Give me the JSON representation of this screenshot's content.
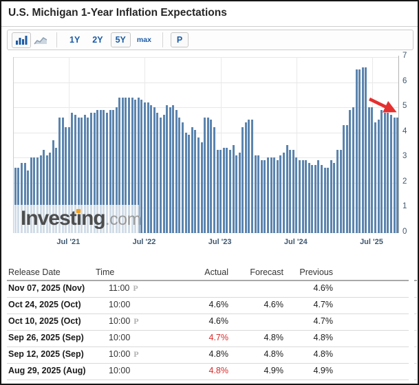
{
  "page": {
    "title": "U.S. Michigan 1-Year Inflation Expectations"
  },
  "toolbar": {
    "chart_type_buttons": [
      {
        "name": "bar-chart",
        "selected": true
      },
      {
        "name": "line-chart",
        "selected": false
      }
    ],
    "range_buttons": [
      {
        "label": "1Y",
        "selected": false
      },
      {
        "label": "2Y",
        "selected": false
      },
      {
        "label": "5Y",
        "selected": true
      },
      {
        "label": "max",
        "selected": false
      }
    ],
    "p_button": {
      "label": "P",
      "selected": true
    }
  },
  "chart_data": {
    "type": "bar",
    "title": "U.S. Michigan 1-Year Inflation Expectations, 5Y view, semi-monthly releases (%)",
    "xlabel": "",
    "ylabel": "",
    "ylim": [
      0,
      7
    ],
    "yticks": [
      0,
      1,
      2,
      3,
      4,
      5,
      6,
      7
    ],
    "grid": true,
    "bar_color": "#5b84ae",
    "x_tick_labels": [
      "Jul '21",
      "Jul '22",
      "Jul '23",
      "Jul '24",
      "Jul '25"
    ],
    "x_tick_indices": [
      17,
      41,
      65,
      89,
      113
    ],
    "values": [
      2.6,
      2.6,
      2.8,
      2.8,
      2.5,
      3.0,
      3.0,
      3.0,
      3.1,
      3.3,
      3.1,
      3.2,
      3.7,
      3.4,
      4.6,
      4.6,
      4.2,
      4.2,
      4.8,
      4.7,
      4.6,
      4.6,
      4.7,
      4.6,
      4.8,
      4.8,
      4.9,
      4.9,
      4.9,
      4.8,
      4.9,
      4.9,
      5.0,
      5.4,
      5.4,
      5.4,
      5.4,
      5.4,
      5.3,
      5.4,
      5.3,
      5.2,
      5.2,
      5.1,
      5.0,
      4.8,
      4.6,
      4.7,
      5.1,
      5.0,
      5.1,
      4.9,
      4.6,
      4.4,
      4.0,
      3.9,
      4.2,
      4.1,
      3.8,
      3.6,
      4.6,
      4.6,
      4.5,
      4.2,
      3.3,
      3.3,
      3.4,
      3.4,
      3.3,
      3.5,
      3.1,
      3.2,
      4.2,
      4.4,
      4.5,
      4.5,
      3.1,
      3.1,
      2.9,
      2.9,
      3.0,
      3.0,
      3.0,
      2.9,
      3.1,
      3.2,
      3.5,
      3.3,
      3.3,
      3.0,
      2.9,
      2.9,
      2.9,
      2.8,
      2.7,
      2.7,
      2.9,
      2.7,
      2.6,
      2.6,
      2.9,
      2.8,
      3.3,
      3.3,
      4.3,
      4.3,
      4.9,
      5.0,
      6.5,
      6.5,
      6.6,
      6.6,
      5.0,
      5.0,
      4.4,
      4.5,
      4.9,
      4.8,
      4.8,
      4.7,
      4.6,
      4.6
    ],
    "annotation": {
      "type": "arrow",
      "color": "#e53030",
      "note": "red arrow pointing down-right at the latest declining bars near 4.6"
    },
    "watermark": {
      "part1": "Invest",
      "part2": "i",
      "part3": "ng",
      "suffix": ".com",
      "full": "Investing.com"
    },
    "legend": null
  },
  "table": {
    "headers": {
      "date": "Release Date",
      "time": "Time",
      "actual": "Actual",
      "forecast": "Forecast",
      "previous": "Previous"
    },
    "prelim_marker": "P",
    "rows": [
      {
        "date": "Nov 07, 2025 (Nov)",
        "time": "11:00",
        "prelim": true,
        "actual": "",
        "actual_red": false,
        "forecast": "",
        "previous": "4.6%"
      },
      {
        "date": "Oct 24, 2025 (Oct)",
        "time": "10:00",
        "prelim": false,
        "actual": "4.6%",
        "actual_red": false,
        "forecast": "4.6%",
        "previous": "4.7%"
      },
      {
        "date": "Oct 10, 2025 (Oct)",
        "time": "10:00",
        "prelim": true,
        "actual": "4.6%",
        "actual_red": false,
        "forecast": "",
        "previous": "4.7%"
      },
      {
        "date": "Sep 26, 2025 (Sep)",
        "time": "10:00",
        "prelim": false,
        "actual": "4.7%",
        "actual_red": true,
        "forecast": "4.8%",
        "previous": "4.8%"
      },
      {
        "date": "Sep 12, 2025 (Sep)",
        "time": "10:00",
        "prelim": true,
        "actual": "4.8%",
        "actual_red": false,
        "forecast": "4.8%",
        "previous": "4.8%"
      },
      {
        "date": "Aug 29, 2025 (Aug)",
        "time": "10:00",
        "prelim": false,
        "actual": "4.8%",
        "actual_red": true,
        "forecast": "4.9%",
        "previous": "4.9%"
      }
    ]
  },
  "colors": {
    "accent_blue": "#1a5ba6",
    "bar": "#5b84ae",
    "negative_red": "#d92b2b",
    "axis_label": "#3e576f",
    "watermark_orange": "#f7a21d"
  }
}
